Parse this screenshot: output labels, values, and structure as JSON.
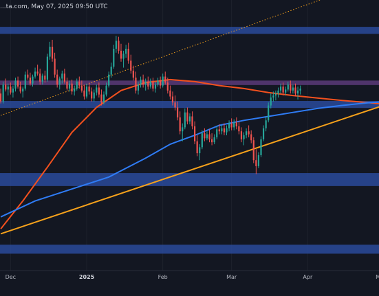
{
  "header": {
    "text": "...ta.com, May 07, 2025 09:50 UTC"
  },
  "chart_data": {
    "type": "candlestick",
    "title": "",
    "xlabel": "",
    "ylabel": "",
    "x_ticks": [
      {
        "label": "Dec",
        "day": 0,
        "bold": false
      },
      {
        "label": "2025",
        "day": 31,
        "bold": true
      },
      {
        "label": "Feb",
        "day": 62,
        "bold": false
      },
      {
        "label": "Mar",
        "day": 90,
        "bold": false
      },
      {
        "label": "Apr",
        "day": 121,
        "bold": false
      },
      {
        "label": "May",
        "day": 151,
        "bold": false
      }
    ],
    "grid": true,
    "y_range": [
      1.6,
      28.8
    ],
    "bull_color": "#26a69a",
    "bear_color": "#ef5350",
    "zone_color": "#2a4a9a",
    "resistance_zone_color": "#5b3a78",
    "zones": [
      {
        "name": "supply-zone-top",
        "low": 25.4,
        "high": 26.1,
        "color": "#2a4a9a"
      },
      {
        "name": "resistance-zone",
        "low": 20.25,
        "high": 20.7,
        "color": "#5b3a78"
      },
      {
        "name": "support-zone-mid",
        "low": 17.95,
        "high": 18.65,
        "color": "#2a4a9a"
      },
      {
        "name": "demand-zone-low",
        "low": 10.1,
        "high": 11.4,
        "color": "#2a4a9a"
      },
      {
        "name": "demand-zone-bottom",
        "low": 3.3,
        "high": 4.2,
        "color": "#2a4a9a"
      }
    ],
    "lines": [
      {
        "name": "ascending-trendline",
        "color": "#f7a21b",
        "style": "solid",
        "points": [
          [
            -4,
            5.3
          ],
          [
            153,
            18.3
          ]
        ]
      },
      {
        "name": "dotted-trendline",
        "color": "#f7a21b",
        "style": "dotted",
        "points": [
          [
            -4,
            17.2
          ],
          [
            126,
            28.8
          ]
        ]
      }
    ],
    "moving_averages": [
      {
        "name": "MA 100",
        "color": "#f4511e",
        "points": [
          [
            -4,
            5.8
          ],
          [
            5,
            8.6
          ],
          [
            15,
            12.0
          ],
          [
            25,
            15.5
          ],
          [
            35,
            18.0
          ],
          [
            45,
            19.7
          ],
          [
            55,
            20.5
          ],
          [
            65,
            20.8
          ],
          [
            75,
            20.6
          ],
          [
            85,
            20.2
          ],
          [
            95,
            19.9
          ],
          [
            105,
            19.5
          ],
          [
            115,
            19.2
          ],
          [
            125,
            18.95
          ],
          [
            135,
            18.7
          ],
          [
            145,
            18.5
          ],
          [
            153,
            18.3
          ]
        ]
      },
      {
        "name": "MA 200",
        "color": "#2f7cf6",
        "points": [
          [
            -4,
            7.0
          ],
          [
            10,
            8.6
          ],
          [
            25,
            9.8
          ],
          [
            40,
            11.0
          ],
          [
            55,
            12.9
          ],
          [
            65,
            14.3
          ],
          [
            75,
            15.2
          ],
          [
            85,
            16.2
          ],
          [
            95,
            16.7
          ],
          [
            105,
            17.1
          ],
          [
            115,
            17.5
          ],
          [
            125,
            17.9
          ],
          [
            135,
            18.2
          ],
          [
            145,
            18.45
          ],
          [
            153,
            18.6
          ]
        ]
      }
    ],
    "candles": [
      [
        -4,
        19.4,
        19.9,
        18.4,
        18.6
      ],
      [
        -3,
        18.6,
        20.6,
        18.4,
        20.3
      ],
      [
        -2,
        20.3,
        20.9,
        19.6,
        19.8
      ],
      [
        -1,
        19.8,
        20.4,
        19.2,
        20.1
      ],
      [
        0,
        20.1,
        20.5,
        19.3,
        19.5
      ],
      [
        1,
        19.5,
        20.2,
        19.0,
        19.9
      ],
      [
        2,
        19.9,
        21.0,
        19.6,
        20.7
      ],
      [
        3,
        20.7,
        21.1,
        19.9,
        20.1
      ],
      [
        4,
        20.1,
        20.6,
        19.4,
        19.6
      ],
      [
        5,
        19.6,
        20.1,
        19.0,
        19.9
      ],
      [
        6,
        19.9,
        21.6,
        19.7,
        21.3
      ],
      [
        7,
        21.3,
        21.8,
        20.8,
        21.0
      ],
      [
        8,
        21.0,
        21.5,
        20.2,
        20.4
      ],
      [
        9,
        20.4,
        21.3,
        20.1,
        21.1
      ],
      [
        10,
        21.1,
        22.0,
        20.9,
        21.6
      ],
      [
        11,
        21.6,
        22.3,
        21.2,
        21.4
      ],
      [
        12,
        21.4,
        21.9,
        20.3,
        20.6
      ],
      [
        13,
        20.6,
        21.4,
        20.3,
        21.2
      ],
      [
        14,
        21.2,
        21.7,
        20.5,
        20.8
      ],
      [
        15,
        20.8,
        23.4,
        20.6,
        23.1
      ],
      [
        16,
        23.1,
        24.6,
        22.8,
        24.1
      ],
      [
        17,
        24.1,
        24.8,
        22.6,
        22.9
      ],
      [
        18,
        22.9,
        23.5,
        21.0,
        21.3
      ],
      [
        19,
        21.3,
        21.8,
        20.0,
        20.3
      ],
      [
        20,
        20.3,
        21.1,
        19.8,
        20.9
      ],
      [
        21,
        20.9,
        21.7,
        20.4,
        21.4
      ],
      [
        22,
        21.4,
        21.9,
        20.4,
        20.6
      ],
      [
        23,
        20.6,
        21.0,
        19.7,
        19.9
      ],
      [
        24,
        19.9,
        20.7,
        19.6,
        20.4
      ],
      [
        25,
        20.4,
        20.8,
        19.3,
        19.6
      ],
      [
        26,
        19.6,
        20.2,
        19.2,
        19.9
      ],
      [
        27,
        19.9,
        20.9,
        19.7,
        20.6
      ],
      [
        28,
        20.6,
        21.1,
        19.9,
        20.2
      ],
      [
        29,
        20.2,
        20.7,
        19.5,
        19.7
      ],
      [
        30,
        19.7,
        20.3,
        18.8,
        19.1
      ],
      [
        31,
        19.1,
        20.4,
        18.9,
        20.1
      ],
      [
        32,
        20.1,
        20.5,
        19.3,
        19.6
      ],
      [
        33,
        19.6,
        20.0,
        18.6,
        18.9
      ],
      [
        34,
        18.9,
        19.8,
        18.6,
        19.5
      ],
      [
        35,
        19.5,
        20.3,
        19.2,
        20.0
      ],
      [
        36,
        20.0,
        20.5,
        19.0,
        19.3
      ],
      [
        37,
        19.3,
        19.8,
        18.2,
        18.5
      ],
      [
        38,
        18.5,
        19.6,
        18.3,
        19.3
      ],
      [
        39,
        19.3,
        20.5,
        19.1,
        20.2
      ],
      [
        40,
        20.2,
        21.6,
        20.0,
        21.3
      ],
      [
        41,
        21.3,
        22.5,
        21.0,
        22.1
      ],
      [
        42,
        22.1,
        24.3,
        21.9,
        23.9
      ],
      [
        43,
        23.9,
        25.2,
        23.5,
        24.7
      ],
      [
        44,
        24.7,
        25.1,
        23.4,
        23.7
      ],
      [
        45,
        23.7,
        24.4,
        22.6,
        22.9
      ],
      [
        46,
        22.9,
        23.7,
        22.0,
        23.4
      ],
      [
        47,
        23.4,
        24.3,
        23.0,
        23.9
      ],
      [
        48,
        23.9,
        24.5,
        22.4,
        22.7
      ],
      [
        49,
        22.7,
        23.3,
        21.4,
        21.7
      ],
      [
        50,
        21.7,
        22.2,
        20.7,
        21.0
      ],
      [
        51,
        21.0,
        21.6,
        19.4,
        19.7
      ],
      [
        52,
        19.7,
        20.6,
        19.3,
        20.3
      ],
      [
        53,
        20.3,
        21.1,
        20.0,
        20.8
      ],
      [
        54,
        20.8,
        21.3,
        20.0,
        20.3
      ],
      [
        55,
        20.3,
        20.9,
        19.7,
        20.6
      ],
      [
        56,
        20.6,
        21.1,
        19.8,
        20.1
      ],
      [
        57,
        20.1,
        20.9,
        19.9,
        20.6
      ],
      [
        58,
        20.6,
        21.0,
        19.6,
        19.9
      ],
      [
        59,
        19.9,
        20.6,
        19.5,
        20.3
      ],
      [
        60,
        20.3,
        21.0,
        20.1,
        20.7
      ],
      [
        61,
        20.7,
        21.1,
        19.9,
        20.2
      ],
      [
        62,
        20.2,
        21.4,
        20.0,
        21.1
      ],
      [
        63,
        21.1,
        21.6,
        20.3,
        20.5
      ],
      [
        64,
        20.5,
        21.0,
        19.4,
        19.7
      ],
      [
        65,
        19.7,
        20.2,
        18.8,
        19.1
      ],
      [
        66,
        19.1,
        19.6,
        18.2,
        18.5
      ],
      [
        67,
        18.5,
        19.2,
        17.7,
        18.0
      ],
      [
        68,
        18.0,
        18.6,
        16.7,
        17.0
      ],
      [
        69,
        17.0,
        17.6,
        15.3,
        15.6
      ],
      [
        70,
        15.6,
        16.4,
        14.6,
        16.0
      ],
      [
        71,
        16.0,
        17.9,
        15.8,
        17.5
      ],
      [
        72,
        17.5,
        18.0,
        16.3,
        16.6
      ],
      [
        73,
        16.6,
        17.4,
        16.3,
        17.1
      ],
      [
        74,
        17.1,
        17.6,
        15.8,
        16.1
      ],
      [
        75,
        16.1,
        16.6,
        14.3,
        14.6
      ],
      [
        76,
        14.6,
        15.2,
        13.1,
        13.4
      ],
      [
        77,
        13.4,
        14.3,
        12.7,
        14.0
      ],
      [
        78,
        14.0,
        15.7,
        13.8,
        15.4
      ],
      [
        79,
        15.4,
        15.9,
        14.6,
        14.9
      ],
      [
        80,
        14.9,
        15.6,
        14.7,
        15.3
      ],
      [
        81,
        15.3,
        15.8,
        14.5,
        14.8
      ],
      [
        82,
        14.8,
        15.4,
        14.2,
        14.5
      ],
      [
        83,
        14.5,
        15.3,
        14.3,
        15.0
      ],
      [
        84,
        15.0,
        16.1,
        14.8,
        15.8
      ],
      [
        85,
        15.8,
        16.3,
        15.3,
        15.6
      ],
      [
        86,
        15.6,
        16.2,
        15.3,
        15.9
      ],
      [
        87,
        15.9,
        16.4,
        15.2,
        15.5
      ],
      [
        88,
        15.5,
        16.2,
        15.2,
        15.9
      ],
      [
        89,
        15.9,
        16.7,
        15.6,
        16.4
      ],
      [
        90,
        16.4,
        16.9,
        15.7,
        16.0
      ],
      [
        91,
        16.0,
        16.8,
        15.7,
        16.5
      ],
      [
        92,
        16.5,
        17.0,
        15.8,
        16.1
      ],
      [
        93,
        16.1,
        16.6,
        15.3,
        15.6
      ],
      [
        94,
        15.6,
        16.0,
        14.5,
        14.8
      ],
      [
        95,
        14.8,
        15.5,
        14.2,
        15.2
      ],
      [
        96,
        15.2,
        15.9,
        14.9,
        15.6
      ],
      [
        97,
        15.6,
        16.2,
        15.0,
        15.3
      ],
      [
        98,
        15.3,
        15.7,
        14.4,
        14.7
      ],
      [
        99,
        14.7,
        15.0,
        12.4,
        12.7
      ],
      [
        100,
        12.7,
        13.8,
        11.3,
        12.1
      ],
      [
        101,
        12.1,
        13.5,
        11.9,
        13.2
      ],
      [
        102,
        13.2,
        15.1,
        13.0,
        14.8
      ],
      [
        103,
        14.8,
        16.2,
        14.6,
        15.9
      ],
      [
        104,
        15.9,
        17.1,
        15.6,
        16.7
      ],
      [
        105,
        16.7,
        18.5,
        16.5,
        18.2
      ],
      [
        106,
        18.2,
        19.4,
        17.9,
        19.0
      ],
      [
        107,
        19.0,
        19.6,
        18.6,
        19.2
      ],
      [
        108,
        19.2,
        19.7,
        18.7,
        19.4
      ],
      [
        109,
        19.4,
        20.0,
        19.0,
        19.7
      ],
      [
        110,
        19.7,
        20.4,
        19.4,
        20.1
      ],
      [
        111,
        20.1,
        20.5,
        19.2,
        19.5
      ],
      [
        112,
        19.5,
        20.1,
        19.2,
        19.8
      ],
      [
        113,
        19.8,
        20.6,
        19.6,
        20.3
      ],
      [
        114,
        20.3,
        20.7,
        19.4,
        19.7
      ],
      [
        115,
        19.7,
        20.3,
        19.4,
        20.0
      ],
      [
        116,
        20.0,
        20.4,
        19.1,
        19.4
      ],
      [
        117,
        19.4,
        20.1,
        18.8,
        19.7
      ],
      [
        118,
        19.7,
        20.2,
        19.3,
        19.9
      ]
    ]
  }
}
